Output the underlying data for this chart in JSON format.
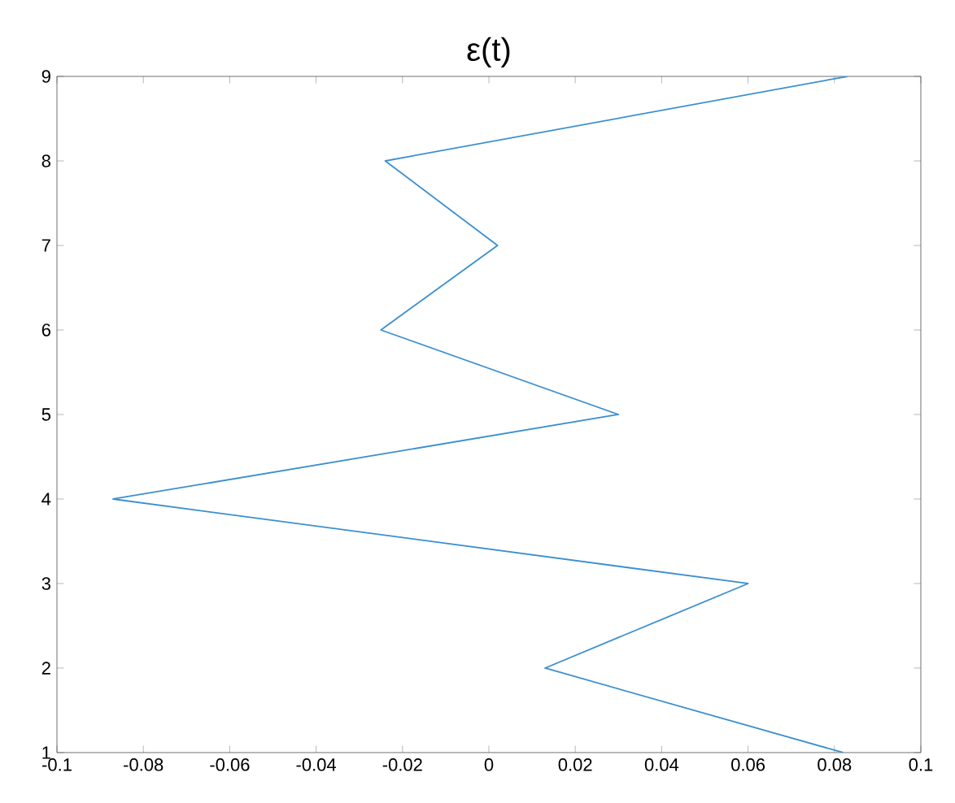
{
  "chart_data": {
    "type": "line",
    "title": "ε(t)",
    "x": [
      0.082,
      0.013,
      0.06,
      -0.087,
      0.03,
      -0.025,
      0.002,
      -0.024,
      0.083
    ],
    "values": [
      1,
      2,
      3,
      4,
      5,
      6,
      7,
      8,
      9
    ],
    "color": "#3a8fd0",
    "xlim": [
      -0.1,
      0.1
    ],
    "xticks": [
      -0.1,
      -0.08,
      -0.06,
      -0.04,
      -0.02,
      0,
      0.02,
      0.04,
      0.06,
      0.08,
      0.1
    ],
    "ylim": [
      1,
      9
    ],
    "yticks": [
      1,
      2,
      3,
      4,
      5,
      6,
      7,
      8,
      9
    ],
    "grid": false
  }
}
